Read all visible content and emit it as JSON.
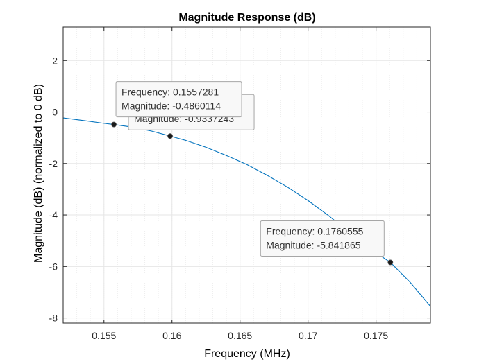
{
  "chart_data": {
    "type": "line",
    "title": "Magnitude Response (dB)",
    "xlabel": "Frequency (MHz)",
    "ylabel": "Magnitude (dB) (normalized to 0 dB)",
    "xlim": [
      0.152,
      0.179
    ],
    "ylim": [
      -8.2,
      3.3
    ],
    "xticks": [
      0.155,
      0.16,
      0.165,
      0.17,
      0.175
    ],
    "xtick_labels": [
      "0.155",
      "0.16",
      "0.165",
      "0.17",
      "0.175"
    ],
    "yticks": [
      -8,
      -6,
      -4,
      -2,
      0,
      2
    ],
    "ytick_labels": [
      "-8",
      "-6",
      "-4",
      "-2",
      "0",
      "2"
    ],
    "grid": true,
    "minor_grid": true,
    "colors": {
      "line": "#0072BD",
      "marker": "#1a1a1a",
      "grid": "#e6e6e6",
      "axis": "#262626"
    },
    "series": [
      {
        "x": [
          0.152,
          0.1535,
          0.155,
          0.1557281,
          0.157,
          0.1585,
          0.1598625,
          0.161,
          0.1625,
          0.164,
          0.1655,
          0.167,
          0.1685,
          0.17,
          0.1715,
          0.173,
          0.1745,
          0.1760555,
          0.1775,
          0.179
        ],
        "y": [
          -0.23,
          -0.33,
          -0.44,
          -0.486,
          -0.58,
          -0.74,
          -0.934,
          -1.1,
          -1.37,
          -1.69,
          -2.04,
          -2.46,
          -2.92,
          -3.44,
          -4.02,
          -4.66,
          -5.29,
          -5.842,
          -6.61,
          -7.55
        ]
      }
    ],
    "datatips": [
      {
        "x": 0.1557281,
        "y": -0.4860114,
        "frequency_text": "Frequency: 0.1557281",
        "magnitude_text": "Magnitude: -0.4860114"
      },
      {
        "x": 0.1598625,
        "y": -0.9337243,
        "frequency_text": "Frequency: 0.1598625",
        "magnitude_text": "Magnitude: -0.9337243"
      },
      {
        "x": 0.1760555,
        "y": -5.841865,
        "frequency_text": "Frequency: 0.1760555",
        "magnitude_text": "Magnitude: -5.841865"
      }
    ]
  }
}
